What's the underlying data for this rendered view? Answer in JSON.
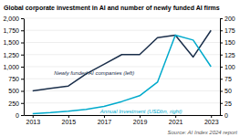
{
  "chart_data": {
    "type": "line",
    "title": "Global corporate investment in AI and number of newly funded AI firms",
    "x": [
      2013,
      2014,
      2015,
      2016,
      2017,
      2018,
      2019,
      2020,
      2021,
      2022,
      2023
    ],
    "series": [
      {
        "name": "Newly funded AI companies (left)",
        "color": "#1a2e4a",
        "values": [
          500,
          550,
          600,
          850,
          1050,
          1250,
          1250,
          1600,
          1650,
          1200,
          1750
        ]
      },
      {
        "name": "Annual Investment (USDbn, right)",
        "color": "#00aacc",
        "axis": "y2",
        "values": [
          3,
          5,
          8,
          12,
          18,
          28,
          40,
          68,
          165,
          155,
          100
        ]
      }
    ],
    "xlim": [
      2012.5,
      2023.5
    ],
    "xticks": [
      2013,
      2015,
      2017,
      2019,
      2021,
      2023
    ],
    "ylim": [
      0,
      2000
    ],
    "yticks": [
      0,
      250,
      500,
      750,
      {
        "value": 1000,
        "label": "1,000"
      },
      {
        "value": 1250,
        "label": "1,250"
      },
      {
        "value": 1500,
        "label": "1,500"
      },
      {
        "value": 1750,
        "label": "1,750"
      },
      {
        "value": 2000,
        "label": "2,000"
      }
    ],
    "y2lim": [
      0,
      200
    ],
    "y2ticks": [
      0,
      25,
      50,
      75,
      100,
      125,
      150,
      175,
      200
    ],
    "grid": true,
    "annotations": [
      "Source: AI Index 2024 report"
    ]
  }
}
